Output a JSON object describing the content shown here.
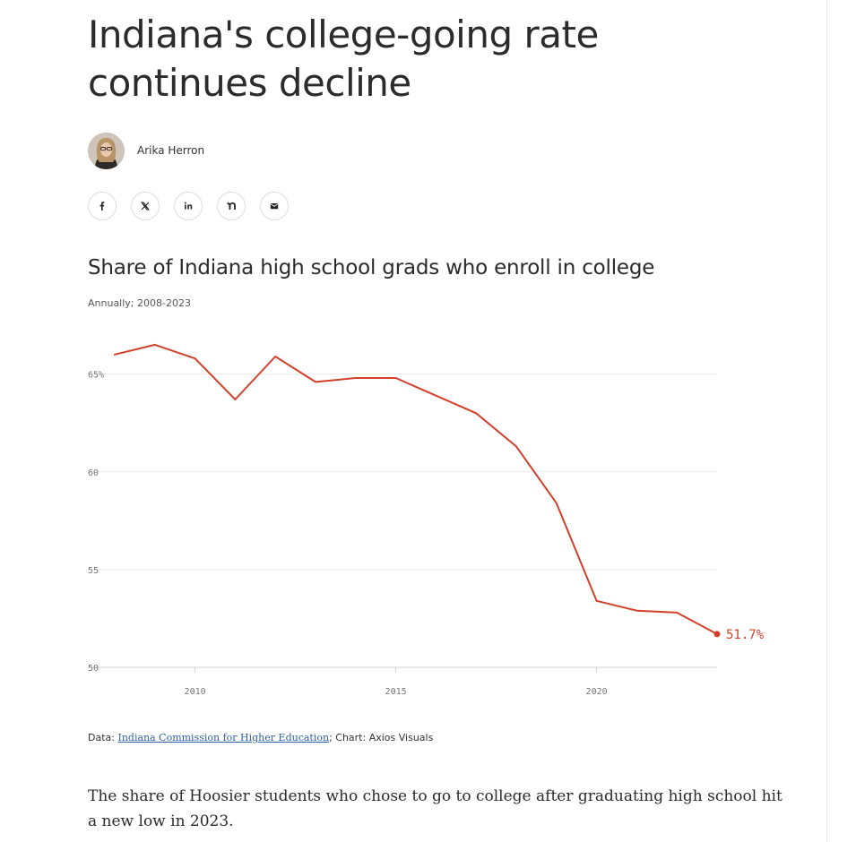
{
  "article": {
    "headline": "Indiana's college-going rate continues decline",
    "author": "Arika Herron",
    "share_icons": [
      "facebook-icon",
      "x-icon",
      "linkedin-icon",
      "nextdoor-icon",
      "email-icon"
    ],
    "body": "The share of Hoosier students who chose to go to college after graduating high school hit a new low in 2023."
  },
  "source": {
    "prefix": "Data: ",
    "link_text": "Indiana Commission for Higher Education",
    "suffix": "; Chart: Axios Visuals"
  },
  "chart_data": {
    "type": "line",
    "title": "Share of Indiana high school grads who enroll in college",
    "subtitle": "Annually; 2008-2023",
    "x": [
      2008,
      2009,
      2010,
      2011,
      2012,
      2013,
      2014,
      2015,
      2016,
      2017,
      2018,
      2019,
      2020,
      2021,
      2022,
      2023
    ],
    "values": [
      66.0,
      66.5,
      65.8,
      63.7,
      65.9,
      64.6,
      64.8,
      64.8,
      63.9,
      63.0,
      61.3,
      58.4,
      53.4,
      52.9,
      52.8,
      51.7
    ],
    "xlim": [
      2008,
      2023
    ],
    "ylim": [
      50,
      67
    ],
    "x_ticks": [
      2010,
      2015,
      2020
    ],
    "x_tick_labels": [
      "2010",
      "2015",
      "2020"
    ],
    "y_ticks": [
      50,
      55,
      60,
      65
    ],
    "y_tick_labels": [
      "50",
      "55",
      "60",
      "65%"
    ],
    "end_label": "51.7%",
    "grid": true,
    "line_color": "#d2402a"
  }
}
